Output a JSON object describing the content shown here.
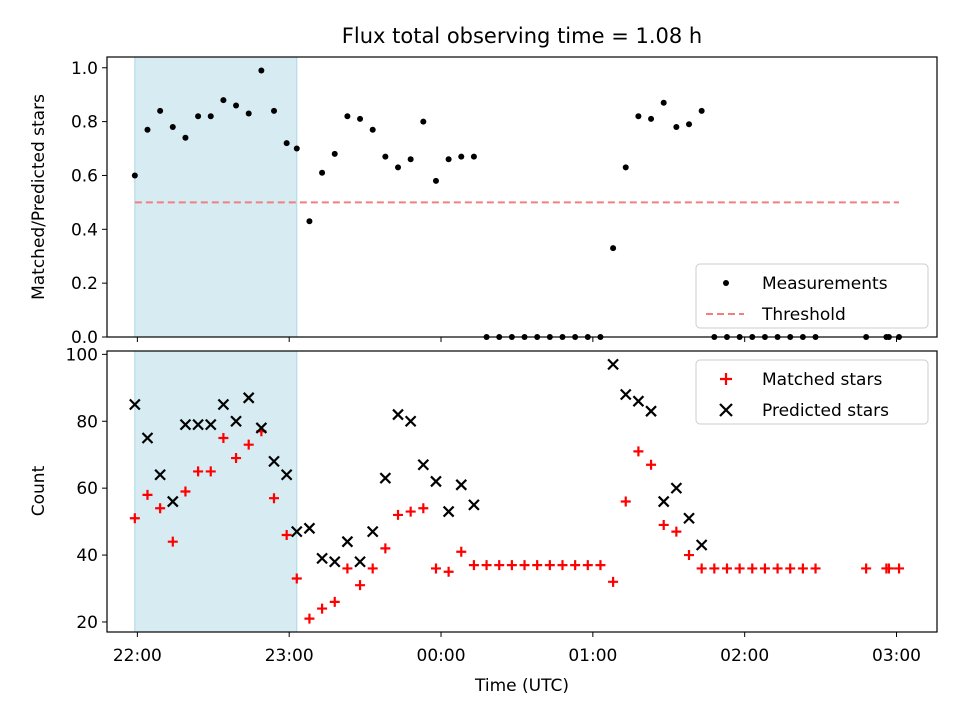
{
  "chart_data": [
    {
      "type": "scatter",
      "title": "Flux total observing time = 1.08 h",
      "xlabel": "",
      "ylabel": "Matched/Predicted stars",
      "ylim": [
        0,
        1.04
      ],
      "xlim": [
        "21:48",
        "03:16"
      ],
      "yticks": [
        "0.0",
        "0.2",
        "0.4",
        "0.6",
        "0.8",
        "1.0"
      ],
      "shaded_span": [
        "21:59",
        "23:03"
      ],
      "shade_color": "#add8e6",
      "legend": {
        "position": "lower-right",
        "entries": [
          "Measurements",
          "Threshold"
        ]
      },
      "threshold": {
        "name": "Threshold",
        "value": 0.5,
        "x": [
          "21:59",
          "03:01"
        ],
        "color": "#f08080"
      },
      "series": [
        {
          "name": "Measurements",
          "marker": "dot",
          "color": "#000000",
          "points": [
            [
              "21:59",
              0.6
            ],
            [
              "22:04",
              0.77
            ],
            [
              "22:09",
              0.84
            ],
            [
              "22:14",
              0.78
            ],
            [
              "22:19",
              0.74
            ],
            [
              "22:24",
              0.82
            ],
            [
              "22:29",
              0.82
            ],
            [
              "22:34",
              0.88
            ],
            [
              "22:39",
              0.86
            ],
            [
              "22:44",
              0.83
            ],
            [
              "22:49",
              0.99
            ],
            [
              "22:54",
              0.84
            ],
            [
              "22:59",
              0.72
            ],
            [
              "23:03",
              0.7
            ],
            [
              "23:08",
              0.43
            ],
            [
              "23:13",
              0.61
            ],
            [
              "23:18",
              0.68
            ],
            [
              "23:23",
              0.82
            ],
            [
              "23:28",
              0.81
            ],
            [
              "23:33",
              0.77
            ],
            [
              "23:38",
              0.67
            ],
            [
              "23:43",
              0.63
            ],
            [
              "23:48",
              0.66
            ],
            [
              "23:53",
              0.8
            ],
            [
              "23:58",
              0.58
            ],
            [
              "00:03",
              0.66
            ],
            [
              "00:08",
              0.67
            ],
            [
              "00:13",
              0.67
            ],
            [
              "00:18",
              0
            ],
            [
              "00:23",
              0
            ],
            [
              "00:28",
              0
            ],
            [
              "00:33",
              0
            ],
            [
              "00:38",
              0
            ],
            [
              "00:43",
              0
            ],
            [
              "00:48",
              0
            ],
            [
              "00:53",
              0
            ],
            [
              "00:58",
              0
            ],
            [
              "01:03",
              0
            ],
            [
              "01:08",
              0.33
            ],
            [
              "01:13",
              0.63
            ],
            [
              "01:18",
              0.82
            ],
            [
              "01:23",
              0.81
            ],
            [
              "01:28",
              0.87
            ],
            [
              "01:33",
              0.78
            ],
            [
              "01:38",
              0.79
            ],
            [
              "01:43",
              0.84
            ],
            [
              "01:48",
              0
            ],
            [
              "01:53",
              0
            ],
            [
              "01:58",
              0
            ],
            [
              "02:03",
              0
            ],
            [
              "02:08",
              0
            ],
            [
              "02:13",
              0
            ],
            [
              "02:18",
              0
            ],
            [
              "02:23",
              0
            ],
            [
              "02:28",
              0
            ],
            [
              "02:48",
              0
            ],
            [
              "02:56",
              0
            ],
            [
              "02:57",
              0
            ],
            [
              "03:01",
              0
            ]
          ]
        }
      ]
    },
    {
      "type": "scatter",
      "title": "",
      "xlabel": "Time (UTC)",
      "ylabel": "Count",
      "ylim": [
        17,
        101
      ],
      "xlim": [
        "21:48",
        "03:16"
      ],
      "yticks": [
        "20",
        "40",
        "60",
        "80",
        "100"
      ],
      "xticks": [
        "22:00",
        "23:00",
        "00:00",
        "01:00",
        "02:00",
        "03:00"
      ],
      "shaded_span": [
        "21:59",
        "23:03"
      ],
      "shade_color": "#add8e6",
      "legend": {
        "position": "upper-right",
        "entries": [
          "Matched stars",
          "Predicted stars"
        ]
      },
      "series": [
        {
          "name": "Matched stars",
          "marker": "plus",
          "color": "#ff0000",
          "points": [
            [
              "21:59",
              51
            ],
            [
              "22:04",
              58
            ],
            [
              "22:09",
              54
            ],
            [
              "22:14",
              44
            ],
            [
              "22:19",
              59
            ],
            [
              "22:24",
              65
            ],
            [
              "22:29",
              65
            ],
            [
              "22:34",
              75
            ],
            [
              "22:39",
              69
            ],
            [
              "22:44",
              73
            ],
            [
              "22:49",
              77
            ],
            [
              "22:54",
              57
            ],
            [
              "22:59",
              46
            ],
            [
              "23:03",
              33
            ],
            [
              "23:08",
              21
            ],
            [
              "23:13",
              24
            ],
            [
              "23:18",
              26
            ],
            [
              "23:23",
              36
            ],
            [
              "23:28",
              31
            ],
            [
              "23:33",
              36
            ],
            [
              "23:38",
              42
            ],
            [
              "23:43",
              52
            ],
            [
              "23:48",
              53
            ],
            [
              "23:53",
              54
            ],
            [
              "23:58",
              36
            ],
            [
              "00:03",
              35
            ],
            [
              "00:08",
              41
            ],
            [
              "00:13",
              37
            ],
            [
              "00:18",
              37
            ],
            [
              "00:23",
              37
            ],
            [
              "00:28",
              37
            ],
            [
              "00:33",
              37
            ],
            [
              "00:38",
              37
            ],
            [
              "00:43",
              37
            ],
            [
              "00:48",
              37
            ],
            [
              "00:53",
              37
            ],
            [
              "00:58",
              37
            ],
            [
              "01:03",
              37
            ],
            [
              "01:08",
              32
            ],
            [
              "01:13",
              56
            ],
            [
              "01:18",
              71
            ],
            [
              "01:23",
              67
            ],
            [
              "01:28",
              49
            ],
            [
              "01:33",
              47
            ],
            [
              "01:38",
              40
            ],
            [
              "01:43",
              36
            ],
            [
              "01:48",
              36
            ],
            [
              "01:53",
              36
            ],
            [
              "01:58",
              36
            ],
            [
              "02:03",
              36
            ],
            [
              "02:08",
              36
            ],
            [
              "02:13",
              36
            ],
            [
              "02:18",
              36
            ],
            [
              "02:23",
              36
            ],
            [
              "02:28",
              36
            ],
            [
              "02:48",
              36
            ],
            [
              "02:56",
              36
            ],
            [
              "02:57",
              36
            ],
            [
              "03:01",
              36
            ]
          ]
        },
        {
          "name": "Predicted stars",
          "marker": "x",
          "color": "#000000",
          "points": [
            [
              "21:59",
              85
            ],
            [
              "22:04",
              75
            ],
            [
              "22:09",
              64
            ],
            [
              "22:14",
              56
            ],
            [
              "22:19",
              79
            ],
            [
              "22:24",
              79
            ],
            [
              "22:29",
              79
            ],
            [
              "22:34",
              85
            ],
            [
              "22:39",
              80
            ],
            [
              "22:44",
              87
            ],
            [
              "22:49",
              78
            ],
            [
              "22:54",
              68
            ],
            [
              "22:59",
              64
            ],
            [
              "23:03",
              47
            ],
            [
              "23:08",
              48
            ],
            [
              "23:13",
              39
            ],
            [
              "23:18",
              38
            ],
            [
              "23:23",
              44
            ],
            [
              "23:28",
              38
            ],
            [
              "23:33",
              47
            ],
            [
              "23:38",
              63
            ],
            [
              "23:43",
              82
            ],
            [
              "23:48",
              80
            ],
            [
              "23:53",
              67
            ],
            [
              "23:58",
              62
            ],
            [
              "00:03",
              53
            ],
            [
              "00:08",
              61
            ],
            [
              "00:13",
              55
            ],
            [
              "01:08",
              97
            ],
            [
              "01:13",
              88
            ],
            [
              "01:18",
              86
            ],
            [
              "01:23",
              83
            ],
            [
              "01:28",
              56
            ],
            [
              "01:33",
              60
            ],
            [
              "01:38",
              51
            ],
            [
              "01:43",
              43
            ]
          ]
        }
      ]
    }
  ]
}
